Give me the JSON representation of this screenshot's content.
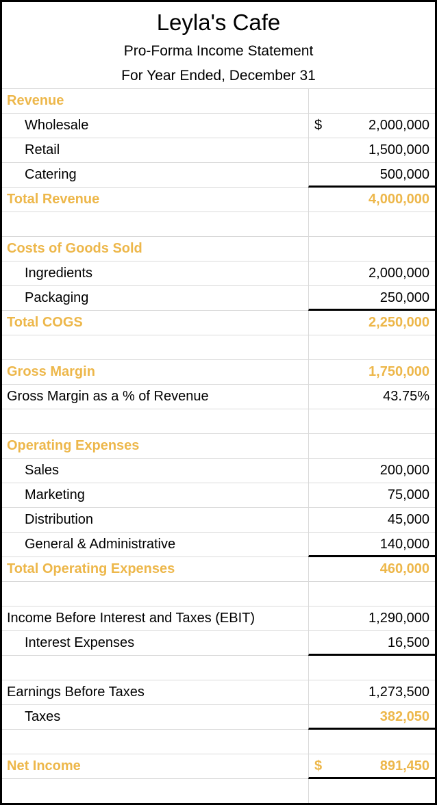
{
  "title_block": {
    "company": "Leyla's Cafe",
    "statement": "Pro-Forma Income Statement",
    "period": "For Year Ended, December 31"
  },
  "colors": {
    "accent_gold": "#edb74a",
    "gridline": "#d9d9d9",
    "rule_black": "#000000",
    "background": "#ffffff"
  },
  "rows": [
    {
      "label": "Revenue",
      "currency": "",
      "value": ""
    },
    {
      "label": "Wholesale",
      "currency": "$",
      "value": "2,000,000"
    },
    {
      "label": "Retail",
      "currency": "",
      "value": "1,500,000"
    },
    {
      "label": "Catering",
      "currency": "",
      "value": "500,000"
    },
    {
      "label": "Total Revenue",
      "currency": "",
      "value": "4,000,000"
    },
    {
      "label": "",
      "currency": "",
      "value": ""
    },
    {
      "label": "Costs of Goods Sold",
      "currency": "",
      "value": ""
    },
    {
      "label": "Ingredients",
      "currency": "",
      "value": "2,000,000"
    },
    {
      "label": "Packaging",
      "currency": "",
      "value": "250,000"
    },
    {
      "label": "Total COGS",
      "currency": "",
      "value": "2,250,000"
    },
    {
      "label": "",
      "currency": "",
      "value": ""
    },
    {
      "label": "Gross Margin",
      "currency": "",
      "value": "1,750,000"
    },
    {
      "label": "Gross Margin as a % of Revenue",
      "currency": "",
      "value": "43.75%"
    },
    {
      "label": "",
      "currency": "",
      "value": ""
    },
    {
      "label": "Operating Expenses",
      "currency": "",
      "value": ""
    },
    {
      "label": "Sales",
      "currency": "",
      "value": "200,000"
    },
    {
      "label": "Marketing",
      "currency": "",
      "value": "75,000"
    },
    {
      "label": "Distribution",
      "currency": "",
      "value": "45,000"
    },
    {
      "label": "General & Administrative",
      "currency": "",
      "value": "140,000"
    },
    {
      "label": "Total Operating Expenses",
      "currency": "",
      "value": "460,000"
    },
    {
      "label": "",
      "currency": "",
      "value": ""
    },
    {
      "label": "Income Before Interest and Taxes (EBIT)",
      "currency": "",
      "value": "1,290,000"
    },
    {
      "label": "Interest Expenses",
      "currency": "",
      "value": "16,500"
    },
    {
      "label": "",
      "currency": "",
      "value": ""
    },
    {
      "label": "Earnings Before Taxes",
      "currency": "",
      "value": "1,273,500"
    },
    {
      "label": "Taxes",
      "currency": "",
      "value": "382,050"
    },
    {
      "label": "",
      "currency": "",
      "value": ""
    },
    {
      "label": "Net Income",
      "currency": "$",
      "value": "891,450"
    },
    {
      "label": "",
      "currency": "",
      "value": ""
    }
  ]
}
